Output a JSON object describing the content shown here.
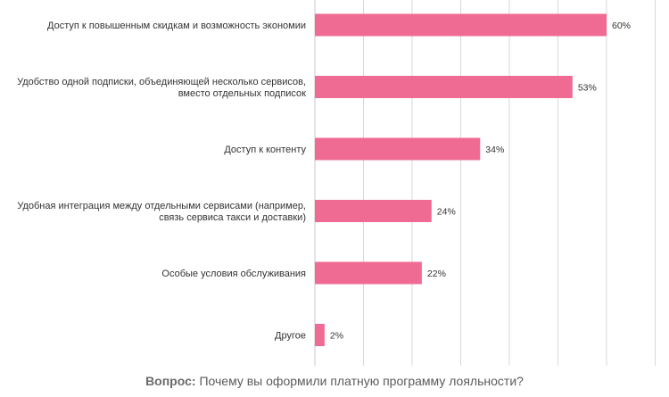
{
  "caption": {
    "prefix": "Вопрос:",
    "text": "Почему вы оформили платную программу лояльности?"
  },
  "colors": {
    "bar": "#f06b93",
    "grid": "#d9d9d9",
    "axis": "#c8c8c8",
    "text": "#333333"
  },
  "chart_data": {
    "type": "bar",
    "orientation": "horizontal",
    "value_suffix": "%",
    "xlim": [
      0,
      70
    ],
    "grid": true,
    "categories": [
      [
        "Доступ к повышенным скидкам и возможность экономии"
      ],
      [
        "Удобство одной подписки, объединяющей несколько сервисов,",
        "вместо отдельных подписок"
      ],
      [
        "Доступ к контенту"
      ],
      [
        "Удобная интеграция между отдельными сервисами (например,",
        "связь сервиса такси и доставки)"
      ],
      [
        "Особые условия обслуживания"
      ],
      [
        "Другое"
      ]
    ],
    "values": [
      60,
      53,
      34,
      24,
      22,
      2
    ]
  }
}
